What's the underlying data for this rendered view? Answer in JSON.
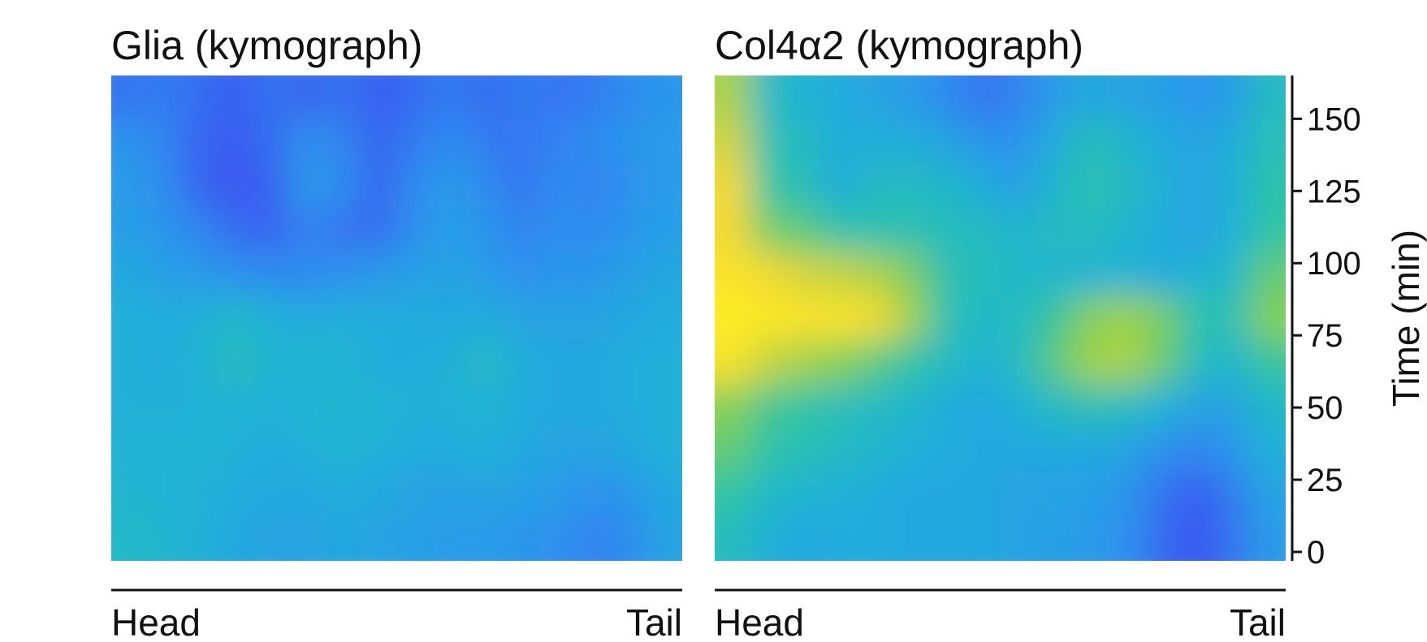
{
  "chart_data": [
    {
      "type": "heatmap",
      "title": "Glia (kymograph)",
      "x_start_label": "Head",
      "x_end_label": "Tail",
      "ylim": [
        0,
        165
      ],
      "colormap": [
        "#3c4df0",
        "#2e8ff0",
        "#1fb3d6",
        "#2ec4a4",
        "#8ad050",
        "#f2d830",
        "#fff024"
      ],
      "values": [
        [
          0.1,
          0.12,
          0.08,
          0.04,
          0.1,
          0.06,
          0.1,
          0.04,
          0.08,
          0.12,
          0.08,
          0.12,
          0.1,
          0.12,
          0.16,
          0.2
        ],
        [
          0.2,
          0.14,
          0.06,
          0.04,
          0.08,
          0.18,
          0.14,
          0.06,
          0.12,
          0.16,
          0.12,
          0.1,
          0.14,
          0.16,
          0.2,
          0.22
        ],
        [
          0.22,
          0.16,
          0.06,
          0.02,
          0.06,
          0.22,
          0.16,
          0.06,
          0.16,
          0.22,
          0.16,
          0.1,
          0.16,
          0.14,
          0.18,
          0.22
        ],
        [
          0.24,
          0.2,
          0.14,
          0.08,
          0.06,
          0.14,
          0.1,
          0.08,
          0.18,
          0.24,
          0.2,
          0.14,
          0.18,
          0.16,
          0.2,
          0.24
        ],
        [
          0.28,
          0.24,
          0.22,
          0.18,
          0.16,
          0.16,
          0.18,
          0.22,
          0.24,
          0.26,
          0.22,
          0.18,
          0.2,
          0.2,
          0.24,
          0.28
        ],
        [
          0.32,
          0.3,
          0.32,
          0.38,
          0.32,
          0.3,
          0.32,
          0.3,
          0.3,
          0.28,
          0.3,
          0.26,
          0.26,
          0.26,
          0.28,
          0.3
        ],
        [
          0.32,
          0.3,
          0.34,
          0.42,
          0.34,
          0.36,
          0.34,
          0.3,
          0.3,
          0.32,
          0.4,
          0.3,
          0.28,
          0.28,
          0.3,
          0.32
        ],
        [
          0.32,
          0.32,
          0.32,
          0.34,
          0.32,
          0.34,
          0.36,
          0.34,
          0.32,
          0.32,
          0.34,
          0.3,
          0.28,
          0.28,
          0.3,
          0.32
        ],
        [
          0.34,
          0.34,
          0.34,
          0.32,
          0.3,
          0.32,
          0.34,
          0.32,
          0.3,
          0.3,
          0.32,
          0.28,
          0.26,
          0.26,
          0.28,
          0.32
        ],
        [
          0.36,
          0.34,
          0.32,
          0.3,
          0.28,
          0.28,
          0.3,
          0.28,
          0.26,
          0.24,
          0.26,
          0.24,
          0.22,
          0.18,
          0.2,
          0.28
        ],
        [
          0.38,
          0.36,
          0.32,
          0.28,
          0.26,
          0.26,
          0.28,
          0.26,
          0.24,
          0.22,
          0.22,
          0.2,
          0.18,
          0.14,
          0.16,
          0.26
        ]
      ]
    },
    {
      "type": "heatmap",
      "title": "Col4α2 (kymograph)",
      "x_start_label": "Head",
      "x_end_label": "Tail",
      "ylabel": "Time (min)",
      "ylim": [
        0,
        165
      ],
      "yticks": [
        0,
        25,
        50,
        75,
        100,
        125,
        150
      ],
      "colormap": [
        "#3c4df0",
        "#2e8ff0",
        "#1fb3d6",
        "#2ec4a4",
        "#8ad050",
        "#f2d830",
        "#fff024"
      ],
      "values": [
        [
          0.72,
          0.4,
          0.34,
          0.3,
          0.26,
          0.22,
          0.16,
          0.1,
          0.14,
          0.22,
          0.28,
          0.26,
          0.24,
          0.2,
          0.24,
          0.4
        ],
        [
          0.78,
          0.46,
          0.4,
          0.3,
          0.32,
          0.3,
          0.26,
          0.2,
          0.18,
          0.3,
          0.44,
          0.36,
          0.3,
          0.26,
          0.3,
          0.44
        ],
        [
          0.84,
          0.5,
          0.44,
          0.3,
          0.4,
          0.4,
          0.38,
          0.3,
          0.24,
          0.36,
          0.46,
          0.4,
          0.32,
          0.26,
          0.32,
          0.48
        ],
        [
          0.84,
          0.62,
          0.58,
          0.48,
          0.46,
          0.46,
          0.42,
          0.4,
          0.36,
          0.4,
          0.42,
          0.36,
          0.3,
          0.26,
          0.32,
          0.5
        ],
        [
          0.92,
          0.84,
          0.78,
          0.76,
          0.72,
          0.64,
          0.46,
          0.42,
          0.38,
          0.36,
          0.34,
          0.34,
          0.3,
          0.34,
          0.38,
          0.6
        ],
        [
          0.98,
          0.94,
          0.92,
          0.92,
          0.86,
          0.7,
          0.46,
          0.38,
          0.4,
          0.52,
          0.66,
          0.7,
          0.64,
          0.48,
          0.44,
          0.66
        ],
        [
          0.9,
          0.76,
          0.7,
          0.66,
          0.58,
          0.5,
          0.4,
          0.34,
          0.4,
          0.58,
          0.7,
          0.72,
          0.62,
          0.42,
          0.36,
          0.52
        ],
        [
          0.66,
          0.54,
          0.5,
          0.44,
          0.4,
          0.36,
          0.3,
          0.28,
          0.32,
          0.4,
          0.46,
          0.42,
          0.34,
          0.26,
          0.26,
          0.38
        ],
        [
          0.6,
          0.48,
          0.44,
          0.4,
          0.36,
          0.32,
          0.3,
          0.28,
          0.28,
          0.28,
          0.28,
          0.26,
          0.18,
          0.14,
          0.2,
          0.32
        ],
        [
          0.5,
          0.38,
          0.34,
          0.32,
          0.3,
          0.28,
          0.28,
          0.28,
          0.26,
          0.26,
          0.24,
          0.2,
          0.1,
          0.04,
          0.12,
          0.26
        ],
        [
          0.42,
          0.32,
          0.28,
          0.3,
          0.3,
          0.28,
          0.28,
          0.28,
          0.26,
          0.24,
          0.22,
          0.18,
          0.08,
          0.02,
          0.1,
          0.22
        ]
      ]
    }
  ]
}
